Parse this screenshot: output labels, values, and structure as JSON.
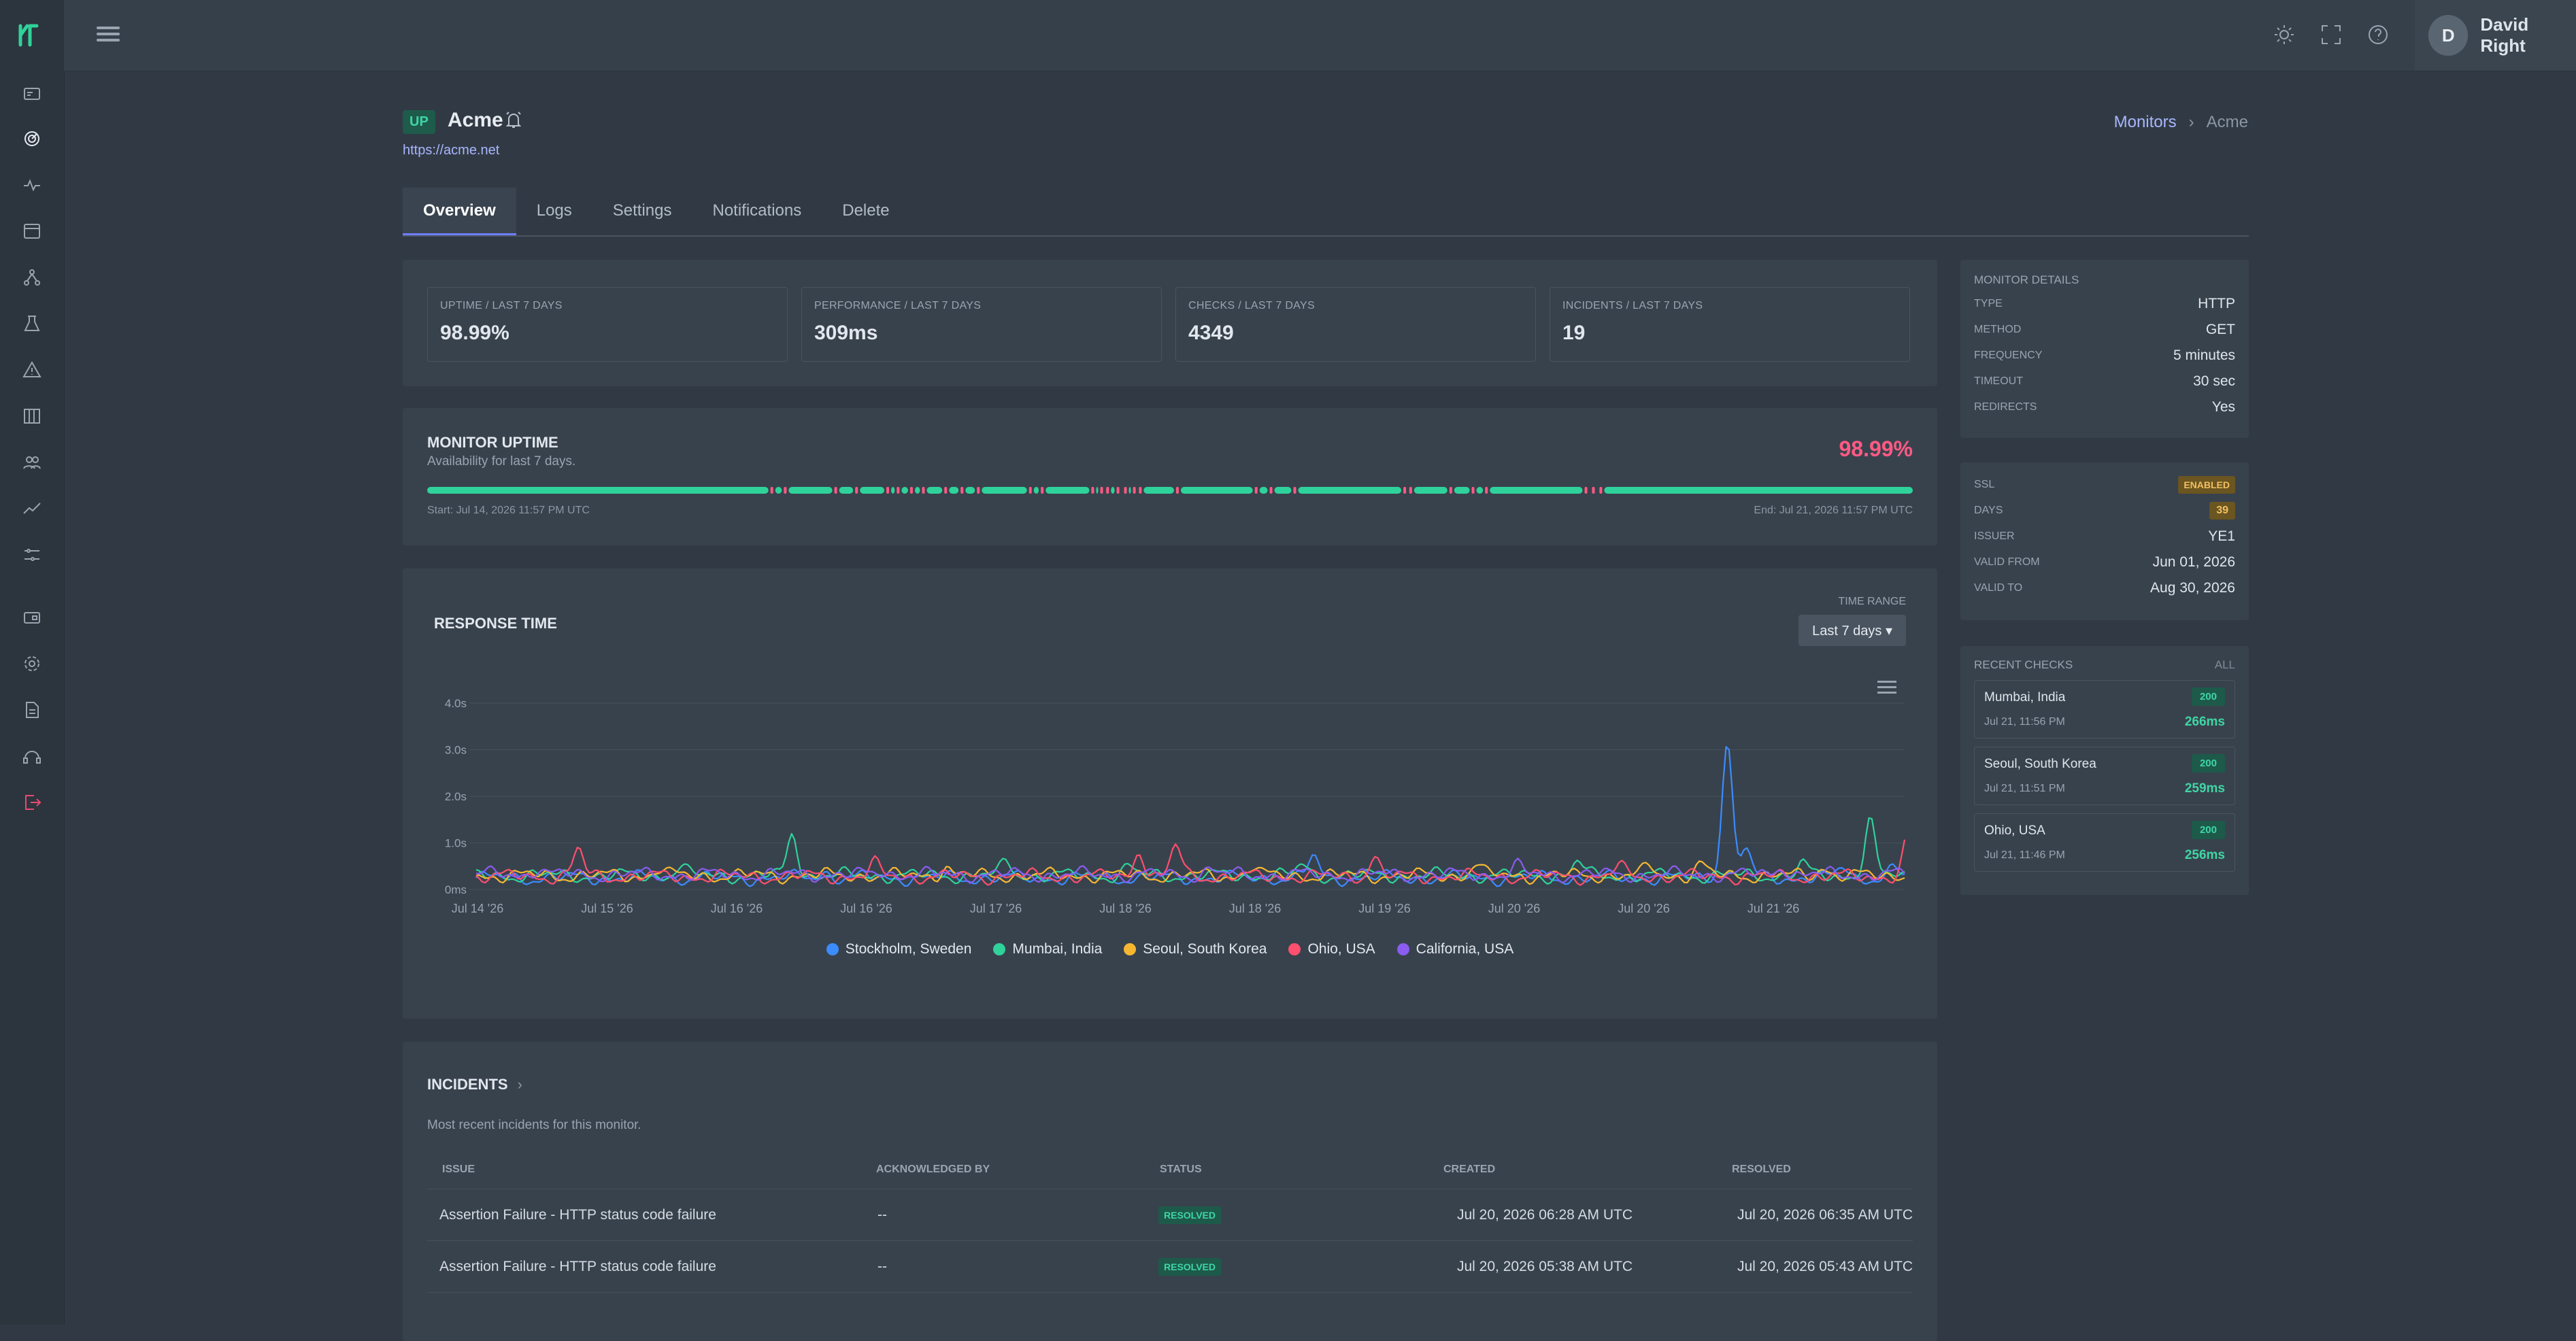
{
  "user": {
    "initial": "D",
    "name": "David Right"
  },
  "monitor": {
    "status": "UP",
    "name": "Acme",
    "url": "https://acme.net"
  },
  "breadcrumb": {
    "parent": "Monitors",
    "separator": "›",
    "current": "Acme"
  },
  "tabs": [
    {
      "label": "Overview",
      "active": true
    },
    {
      "label": "Logs"
    },
    {
      "label": "Settings"
    },
    {
      "label": "Notifications"
    },
    {
      "label": "Delete"
    }
  ],
  "stats": [
    {
      "label": "UPTIME / LAST 7 DAYS",
      "value": "98.99%"
    },
    {
      "label": "PERFORMANCE / LAST 7 DAYS",
      "value": "309ms"
    },
    {
      "label": "CHECKS / LAST 7 DAYS",
      "value": "4349"
    },
    {
      "label": "INCIDENTS / LAST 7 DAYS",
      "value": "19"
    }
  ],
  "uptime": {
    "title": "MONITOR UPTIME",
    "subtitle": "Availability for last 7 days.",
    "percent": "98.99%",
    "start": "Start: Jul 14, 2026 11:57 PM UTC",
    "end": "End: Jul 21, 2026 11:57 PM UTC",
    "bar_color": "#2fd29a",
    "gap_color": "#ff5a83",
    "down_markers": [
      0.232,
      0.241,
      0.275,
      0.289,
      0.31,
      0.317,
      0.326,
      0.334,
      0.349,
      0.36,
      0.371,
      0.406,
      0.414,
      0.448,
      0.454,
      0.458,
      0.465,
      0.47,
      0.476,
      0.48,
      0.505,
      0.558,
      0.568,
      0.584,
      0.658,
      0.662,
      0.689,
      0.704,
      0.713,
      0.78,
      0.785,
      0.79
    ]
  },
  "response_time": {
    "title": "RESPONSE TIME",
    "time_range_label": "TIME RANGE",
    "time_range_value": "Last 7 days ▾"
  },
  "chart_data": {
    "type": "line",
    "title": "RESPONSE TIME",
    "y_ticks": [
      "0ms",
      "1.0s",
      "2.0s",
      "3.0s",
      "4.0s"
    ],
    "ylim": [
      0,
      4
    ],
    "x_ticks": [
      "Jul 14 '26",
      "Jul 15 '26",
      "Jul 16 '26",
      "Jul 16 '26",
      "Jul 17 '26",
      "Jul 18 '26",
      "Jul 18 '26",
      "Jul 19 '26",
      "Jul 20 '26",
      "Jul 20 '26",
      "Jul 21 '26"
    ],
    "x_range": [
      0,
      7
    ],
    "grid": true,
    "legend_position": "bottom",
    "series": [
      {
        "name": "Stockholm, Sweden",
        "color": "#3b8cff",
        "base": 0.25,
        "spikes": [
          [
            1.7,
            0.4
          ],
          [
            4.1,
            0.7
          ],
          [
            6.13,
            3.2
          ],
          [
            6.22,
            0.9
          ],
          [
            6.7,
            0.5
          ],
          [
            6.95,
            0.45
          ]
        ]
      },
      {
        "name": "Mumbai, India",
        "color": "#2fd29a",
        "base": 0.3,
        "spikes": [
          [
            1.0,
            0.5
          ],
          [
            1.55,
            1.2
          ],
          [
            2.6,
            0.6
          ],
          [
            3.2,
            0.5
          ],
          [
            4.05,
            0.55
          ],
          [
            5.4,
            0.6
          ],
          [
            6.5,
            0.55
          ],
          [
            6.83,
            1.45
          ],
          [
            7.1,
            0.6
          ]
        ]
      },
      {
        "name": "Seoul, South Korea",
        "color": "#f5b731",
        "base": 0.3,
        "spikes": [
          [
            0.9,
            0.45
          ],
          [
            2.3,
            0.5
          ],
          [
            3.8,
            0.5
          ],
          [
            4.9,
            0.55
          ],
          [
            5.75,
            0.5
          ],
          [
            6.0,
            0.55
          ],
          [
            6.6,
            0.5
          ],
          [
            7.05,
            0.55
          ]
        ]
      },
      {
        "name": "Ohio, USA",
        "color": "#ff4f6e",
        "base": 0.28,
        "spikes": [
          [
            0.5,
            0.85
          ],
          [
            1.95,
            0.55
          ],
          [
            3.25,
            0.85
          ],
          [
            3.43,
            0.95
          ],
          [
            4.4,
            0.7
          ],
          [
            5.6,
            0.5
          ],
          [
            7.02,
            1.2
          ],
          [
            7.25,
            0.6
          ]
        ]
      },
      {
        "name": "California, USA",
        "color": "#8a5cf0",
        "base": 0.32,
        "spikes": [
          [
            0.3,
            0.45
          ],
          [
            2.0,
            0.4
          ],
          [
            3.6,
            0.45
          ],
          [
            5.1,
            0.5
          ],
          [
            6.4,
            0.5
          ],
          [
            7.2,
            0.55
          ],
          [
            7.45,
            0.5
          ]
        ]
      }
    ]
  },
  "incidents": {
    "title": "INCIDENTS",
    "chevron": "›",
    "subtitle": "Most recent incidents for this monitor.",
    "columns": [
      "ISSUE",
      "ACKNOWLEDGED BY",
      "STATUS",
      "CREATED",
      "RESOLVED"
    ],
    "rows": [
      {
        "issue": "Assertion Failure - HTTP status code failure",
        "ack": "--",
        "status": "RESOLVED",
        "created": "Jul 20, 2026 06:28 AM UTC",
        "resolved": "Jul 20, 2026 06:35 AM UTC"
      },
      {
        "issue": "Assertion Failure - HTTP status code failure",
        "ack": "--",
        "status": "RESOLVED",
        "created": "Jul 20, 2026 05:38 AM UTC",
        "resolved": "Jul 20, 2026 05:43 AM UTC"
      }
    ]
  },
  "monitor_details": {
    "title": "MONITOR DETAILS",
    "rows": [
      {
        "key": "TYPE",
        "value": "HTTP"
      },
      {
        "key": "METHOD",
        "value": "GET"
      },
      {
        "key": "FREQUENCY",
        "value": "5 minutes"
      },
      {
        "key": "TIMEOUT",
        "value": "30 sec"
      },
      {
        "key": "REDIRECTS",
        "value": "Yes"
      }
    ]
  },
  "ssl": {
    "label": "SSL",
    "status": "ENABLED",
    "days_label": "DAYS",
    "days": "39",
    "rows": [
      {
        "key": "ISSUER",
        "value": "YE1"
      },
      {
        "key": "VALID FROM",
        "value": "Jun 01, 2026"
      },
      {
        "key": "VALID TO",
        "value": "Aug 30, 2026"
      }
    ]
  },
  "recent_checks": {
    "title": "RECENT CHECKS",
    "all_label": "All",
    "items": [
      {
        "location": "Mumbai, India",
        "time": "Jul 21, 11:56 PM",
        "code": "200",
        "ms": "266ms"
      },
      {
        "location": "Seoul, South Korea",
        "time": "Jul 21, 11:51 PM",
        "code": "200",
        "ms": "259ms"
      },
      {
        "location": "Ohio, USA",
        "time": "Jul 21, 11:46 PM",
        "code": "200",
        "ms": "256ms"
      }
    ]
  },
  "icons": {
    "sidebar": [
      "dashboard-icon",
      "monitors-icon",
      "heartbeat-icon",
      "pages-icon",
      "integrations-icon",
      "tests-icon",
      "incidents-icon",
      "status-pages-icon",
      "team-icon",
      "reports-icon",
      "settings-list-icon",
      "billing-icon",
      "gear-icon",
      "docs-icon",
      "support-icon",
      "logout-icon"
    ],
    "topbar": [
      "sun-icon",
      "fullscreen-icon",
      "help-icon"
    ]
  }
}
